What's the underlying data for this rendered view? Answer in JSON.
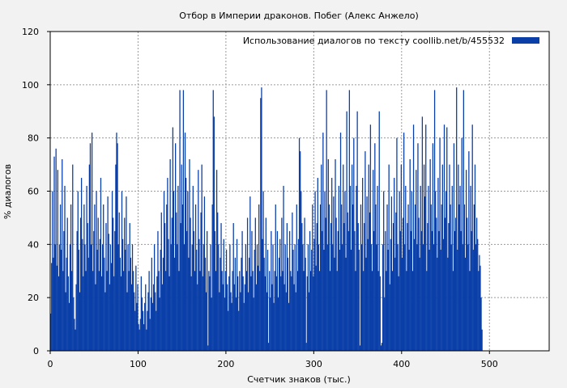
{
  "chart_data": {
    "type": "bar",
    "title": "Отбор в Империи драконов. Побег (Алекс Анжело)",
    "xlabel": "Счетчик знаков (тыс.)",
    "ylabel": "% диалогов",
    "xlim": [
      0,
      568
    ],
    "ylim": [
      0,
      120
    ],
    "x_ticks": [
      0,
      100,
      200,
      300,
      400,
      500
    ],
    "y_ticks": [
      0,
      20,
      40,
      60,
      80,
      100,
      120
    ],
    "grid": true,
    "legend_position": "top-right",
    "series": [
      {
        "name": "Использование диалогов по тексту  coollib.net/b/455532",
        "color": "#0a3fa8",
        "x_step": 1,
        "values": [
          14,
          33,
          60,
          35,
          73,
          40,
          76,
          32,
          68,
          28,
          40,
          55,
          38,
          72,
          30,
          45,
          62,
          22,
          35,
          50,
          28,
          18,
          40,
          55,
          30,
          70,
          20,
          12,
          8,
          25,
          45,
          60,
          38,
          22,
          50,
          65,
          42,
          28,
          55,
          40,
          30,
          62,
          48,
          35,
          70,
          78,
          40,
          82,
          30,
          45,
          55,
          25,
          60,
          38,
          50,
          30,
          42,
          65,
          28,
          40,
          55,
          35,
          22,
          48,
          30,
          58,
          44,
          25,
          40,
          33,
          60,
          50,
          28,
          45,
          70,
          82,
          78,
          40,
          52,
          35,
          28,
          60,
          42,
          30,
          50,
          38,
          58,
          22,
          40,
          30,
          48,
          35,
          25,
          40,
          30,
          22,
          15,
          32,
          18,
          25,
          10,
          8,
          12,
          28,
          20,
          15,
          10,
          18,
          25,
          8,
          15,
          22,
          30,
          12,
          20,
          35,
          18,
          25,
          40,
          22,
          15,
          28,
          45,
          30,
          20,
          38,
          52,
          25,
          35,
          60,
          48,
          30,
          55,
          65,
          42,
          28,
          72,
          40,
          50,
          84,
          60,
          35,
          78,
          52,
          40,
          62,
          30,
          98,
          48,
          70,
          55,
          98,
          40,
          82,
          65,
          45,
          60,
          35,
          72,
          50,
          28,
          40,
          62,
          45,
          30,
          55,
          38,
          25,
          68,
          42,
          30,
          52,
          70,
          28,
          40,
          58,
          35,
          22,
          45,
          2,
          30,
          28,
          40,
          20,
          55,
          98,
          88,
          45,
          30,
          68,
          52,
          40,
          22,
          35,
          48,
          30,
          25,
          42,
          20,
          30,
          38,
          25,
          15,
          28,
          40,
          22,
          18,
          30,
          48,
          25,
          35,
          20,
          42,
          28,
          15,
          30,
          22,
          35,
          45,
          28,
          18,
          25,
          40,
          30,
          50,
          22,
          35,
          58,
          28,
          45,
          30,
          20,
          38,
          50,
          25,
          40,
          32,
          55,
          30,
          95,
          99,
          42,
          60,
          35,
          28,
          50,
          22,
          38,
          3,
          30,
          20,
          45,
          25,
          40,
          18,
          30,
          55,
          28,
          45,
          20,
          35,
          42,
          28,
          50,
          30,
          62,
          25,
          40,
          22,
          48,
          35,
          18,
          45,
          30,
          28,
          52,
          38,
          25,
          40,
          22,
          55,
          30,
          42,
          80,
          75,
          60,
          48,
          40,
          30,
          50,
          35,
          3,
          28,
          40,
          22,
          45,
          30,
          38,
          55,
          28,
          42,
          60,
          32,
          48,
          65,
          40,
          30,
          55,
          70,
          45,
          82,
          38,
          60,
          50,
          98,
          40,
          72,
          55,
          30,
          48,
          65,
          40,
          58,
          35,
          72,
          50,
          30,
          45,
          62,
          38,
          82,
          55,
          40,
          70,
          48,
          60,
          35,
          90,
          52,
          45,
          98,
          62,
          38,
          70,
          55,
          80,
          45,
          30,
          62,
          90,
          48,
          38,
          2,
          55,
          40,
          65,
          30,
          48,
          75,
          35,
          58,
          42,
          70,
          52,
          85,
          40,
          30,
          68,
          45,
          78,
          55,
          40,
          62,
          30,
          90,
          28,
          2,
          3,
          40,
          60,
          20,
          45,
          30,
          55,
          38,
          70,
          25,
          42,
          58,
          30,
          48,
          65,
          35,
          52,
          80,
          40,
          28,
          60,
          45,
          70,
          35,
          50,
          82,
          40,
          62,
          30,
          48,
          55,
          38,
          72,
          45,
          60,
          30,
          85,
          42,
          55,
          68,
          40,
          78,
          50,
          35,
          62,
          45,
          88,
          40,
          70,
          58,
          85,
          30,
          48,
          62,
          38,
          72,
          55,
          45,
          78,
          40,
          98,
          60,
          50,
          35,
          65,
          45,
          80,
          38,
          55,
          70,
          42,
          85,
          50,
          60,
          84,
          35,
          48,
          70,
          55,
          40,
          62,
          30,
          78,
          45,
          50,
          99,
          38,
          70,
          55,
          62,
          45,
          80,
          40,
          98,
          55,
          35,
          68,
          50,
          40,
          75,
          30,
          62,
          45,
          85,
          38,
          55,
          70,
          40,
          50,
          42,
          30,
          36,
          32,
          20,
          8
        ]
      }
    ]
  }
}
